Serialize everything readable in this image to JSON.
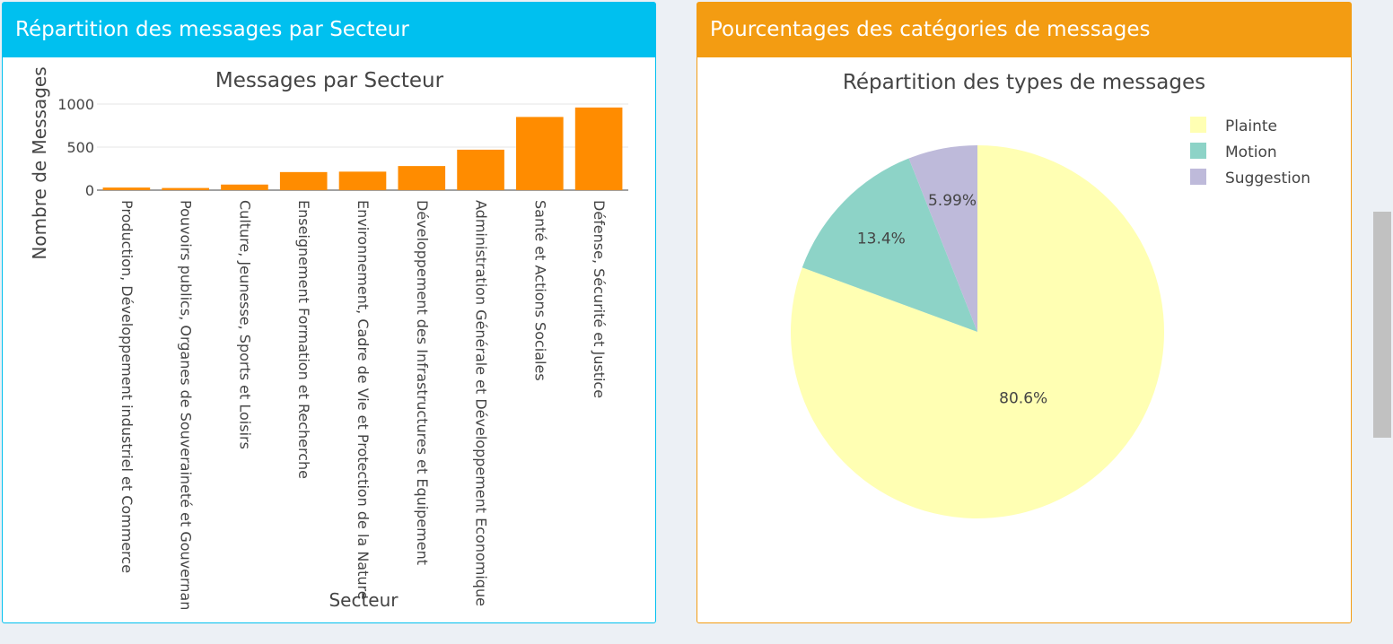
{
  "left_panel": {
    "title": "Répartition des messages par Secteur"
  },
  "right_panel": {
    "title": "Pourcentages des catégories de messages"
  },
  "chart_data": [
    {
      "type": "bar",
      "title": "Messages par Secteur",
      "xlabel": "Secteur",
      "ylabel": "Nombre de Messages",
      "categories": [
        "Production, Développement industriel et Commerce",
        "Pouvoirs publics, Organes de Souveraineté et Gouvernance",
        "Culture, Jeunesse, Sports et Loisirs",
        "Enseignement Formation et Recherche",
        "Environnement, Cadre de Vie et Protection de la Nature",
        "Développement des Infrastructures et Equipement",
        "Administration Générale et Développement Economique",
        "Santé et Actions Sociales",
        "Défense, Sécurité et Justice"
      ],
      "values": [
        30,
        25,
        65,
        210,
        215,
        280,
        470,
        850,
        960
      ],
      "ylim": [
        0,
        1000
      ],
      "yticks": [
        0,
        500,
        1000
      ],
      "grid": true,
      "bar_color": "#ff8c00"
    },
    {
      "type": "pie",
      "title": "Répartition des types de messages",
      "labels": [
        "Plainte",
        "Motion",
        "Suggestion"
      ],
      "values": [
        80.6,
        13.4,
        5.99
      ],
      "value_labels": [
        "80.6%",
        "13.4%",
        "5.99%"
      ],
      "colors": [
        "#ffffb3",
        "#8dd3c7",
        "#bebada"
      ],
      "legend": "top-right"
    }
  ]
}
